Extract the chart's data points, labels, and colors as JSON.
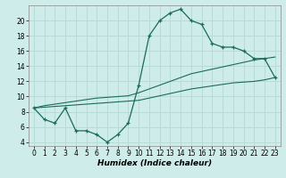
{
  "xlabel": "Humidex (Indice chaleur)",
  "background_color": "#ceecea",
  "grid_color": "#b8dbd8",
  "line_color": "#1a6b5a",
  "x_values": [
    0,
    1,
    2,
    3,
    4,
    5,
    6,
    7,
    8,
    9,
    10,
    11,
    12,
    13,
    14,
    15,
    16,
    17,
    18,
    19,
    20,
    21,
    22,
    23
  ],
  "line1_y": [
    8.5,
    7.0,
    6.5,
    8.5,
    5.5,
    5.5,
    5.0,
    4.0,
    5.0,
    6.5,
    11.5,
    18.0,
    20.0,
    21.0,
    21.5,
    20.0,
    19.5,
    17.0,
    16.5,
    16.5,
    16.0,
    15.0,
    15.0,
    12.5
  ],
  "line2_y": [
    8.5,
    8.6,
    8.7,
    8.8,
    8.9,
    9.0,
    9.1,
    9.2,
    9.3,
    9.4,
    9.5,
    9.8,
    10.1,
    10.4,
    10.7,
    11.0,
    11.2,
    11.4,
    11.6,
    11.8,
    11.9,
    12.0,
    12.2,
    12.5
  ],
  "line3_y": [
    8.5,
    8.8,
    9.0,
    9.2,
    9.4,
    9.6,
    9.8,
    9.9,
    10.0,
    10.1,
    10.5,
    11.0,
    11.5,
    12.0,
    12.5,
    13.0,
    13.3,
    13.6,
    13.9,
    14.2,
    14.5,
    14.8,
    15.0,
    15.2
  ],
  "xlim": [
    -0.5,
    23.5
  ],
  "ylim": [
    3.5,
    22.0
  ],
  "yticks": [
    4,
    6,
    8,
    10,
    12,
    14,
    16,
    18,
    20
  ],
  "xticks": [
    0,
    1,
    2,
    3,
    4,
    5,
    6,
    7,
    8,
    9,
    10,
    11,
    12,
    13,
    14,
    15,
    16,
    17,
    18,
    19,
    20,
    21,
    22,
    23
  ]
}
